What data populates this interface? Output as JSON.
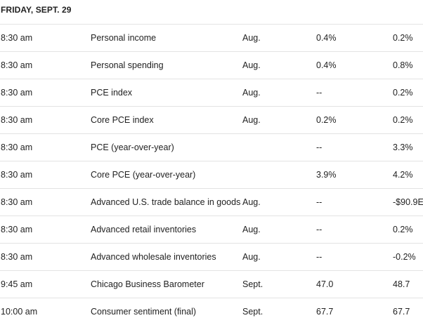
{
  "heading": "FRIDAY, SEPT. 29",
  "rows": [
    {
      "time": "8:30 am",
      "event": "Personal income",
      "period": "Aug.",
      "forecast": "0.4%",
      "previous": "0.2%"
    },
    {
      "time": "8:30 am",
      "event": "Personal spending",
      "period": "Aug.",
      "forecast": "0.4%",
      "previous": "0.8%"
    },
    {
      "time": "8:30 am",
      "event": "PCE index",
      "period": "Aug.",
      "forecast": "--",
      "previous": "0.2%"
    },
    {
      "time": "8:30 am",
      "event": "Core PCE index",
      "period": "Aug.",
      "forecast": "0.2%",
      "previous": "0.2%"
    },
    {
      "time": "8:30 am",
      "event": "PCE (year-over-year)",
      "period": "",
      "forecast": "--",
      "previous": "3.3%"
    },
    {
      "time": "8:30 am",
      "event": "Core PCE (year-over-year)",
      "period": "",
      "forecast": "3.9%",
      "previous": "4.2%"
    },
    {
      "time": "8:30 am",
      "event": "Advanced U.S. trade balance in goods",
      "period": "Aug.",
      "forecast": "--",
      "previous": "-$90.9E"
    },
    {
      "time": "8:30 am",
      "event": "Advanced retail inventories",
      "period": "Aug.",
      "forecast": "--",
      "previous": "0.2%"
    },
    {
      "time": "8:30 am",
      "event": "Advanced wholesale inventories",
      "period": "Aug.",
      "forecast": "--",
      "previous": "-0.2%"
    },
    {
      "time": "9:45 am",
      "event": "Chicago Business Barometer",
      "period": "Sept.",
      "forecast": "47.0",
      "previous": "48.7"
    },
    {
      "time": "10:00 am",
      "event": "Consumer sentiment (final)",
      "period": "Sept.",
      "forecast": "67.7",
      "previous": "67.7"
    }
  ]
}
